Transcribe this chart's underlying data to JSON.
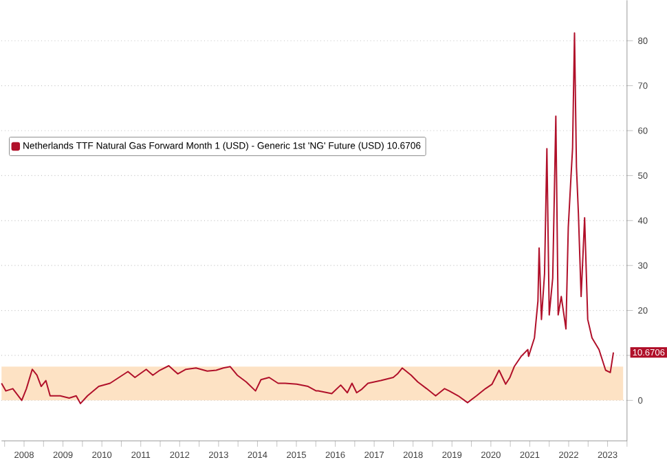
{
  "chart_data": {
    "type": "line",
    "series": [
      {
        "name": "Netherlands TTF Natural Gas Forward Month 1 (USD) - Generic 1st 'NG' Future (USD) 10.6706",
        "color": "#b0102a",
        "x": [
          2007.92,
          2008.03,
          2008.21,
          2008.44,
          2008.56,
          2008.71,
          2008.83,
          2008.94,
          2009.06,
          2009.17,
          2009.43,
          2009.66,
          2009.84,
          2009.95,
          2010.13,
          2010.42,
          2010.71,
          2010.94,
          2011.17,
          2011.35,
          2011.64,
          2011.81,
          2011.99,
          2012.22,
          2012.45,
          2012.66,
          2012.92,
          2013.21,
          2013.44,
          2013.62,
          2013.8,
          2013.98,
          2014.21,
          2014.45,
          2014.59,
          2014.8,
          2015.03,
          2015.21,
          2015.51,
          2015.8,
          2016.01,
          2016.06,
          2016.41,
          2016.64,
          2016.81,
          2016.93,
          2017.05,
          2017.17,
          2017.34,
          2017.67,
          2017.99,
          2018.1,
          2018.22,
          2018.45,
          2018.62,
          2018.85,
          2019.08,
          2019.31,
          2019.43,
          2019.66,
          2019.9,
          2020.13,
          2020.36,
          2020.53,
          2020.71,
          2020.88,
          2020.99,
          2021.1,
          2021.28,
          2021.45,
          2021.47,
          2021.62,
          2021.71,
          2021.74,
          2021.8,
          2021.88,
          2021.94,
          2022.0,
          2022.09,
          2022.17,
          2022.23,
          2022.31,
          2022.43,
          2022.49,
          2022.56,
          2022.6,
          2022.65,
          2022.7,
          2022.75,
          2022.82,
          2022.91,
          2022.99,
          2023.1,
          2023.28,
          2023.45,
          2023.57,
          2023.65
        ],
        "values": [
          3.8,
          2.1,
          2.6,
          0.0,
          2.6,
          6.9,
          5.6,
          3.1,
          4.4,
          1.0,
          1.0,
          0.5,
          1.0,
          -0.7,
          1.0,
          3.1,
          3.8,
          5.1,
          6.4,
          5.1,
          6.9,
          5.6,
          6.7,
          7.7,
          5.9,
          6.9,
          7.2,
          6.5,
          6.7,
          7.2,
          7.5,
          5.6,
          4.1,
          2.1,
          4.6,
          5.1,
          3.8,
          3.8,
          3.6,
          3.1,
          2.1,
          2.1,
          1.5,
          3.4,
          1.7,
          3.8,
          1.7,
          2.4,
          3.8,
          4.4,
          5.1,
          5.9,
          7.2,
          5.6,
          4.1,
          2.6,
          1.0,
          2.6,
          2.1,
          1.0,
          -0.5,
          1.0,
          2.6,
          3.6,
          6.7,
          3.6,
          5.1,
          7.5,
          9.8,
          11.3,
          9.8,
          13.9,
          22.1,
          33.9,
          18.0,
          28.2,
          56.0,
          19.0,
          27.2,
          63.2,
          19.0,
          23.1,
          15.9,
          38.5,
          49.8,
          56.0,
          81.7,
          51.9,
          41.6,
          23.1,
          40.6,
          18.0,
          13.9,
          11.3,
          6.7,
          6.2,
          10.67
        ]
      }
    ],
    "xlim": [
      2007.92,
      2024.0
    ],
    "xticks": [
      {
        "value": 2008,
        "label": null
      },
      {
        "value": 2008.5,
        "label": "2008"
      },
      {
        "value": 2009,
        "label": null
      },
      {
        "value": 2009.5,
        "label": "2009"
      },
      {
        "value": 2010,
        "label": null
      },
      {
        "value": 2010.5,
        "label": "2010"
      },
      {
        "value": 2011,
        "label": null
      },
      {
        "value": 2011.5,
        "label": "2011"
      },
      {
        "value": 2012,
        "label": null
      },
      {
        "value": 2012.5,
        "label": "2012"
      },
      {
        "value": 2013,
        "label": null
      },
      {
        "value": 2013.5,
        "label": "2013"
      },
      {
        "value": 2014,
        "label": null
      },
      {
        "value": 2014.5,
        "label": "2014"
      },
      {
        "value": 2015,
        "label": null
      },
      {
        "value": 2015.5,
        "label": "2015"
      },
      {
        "value": 2016,
        "label": null
      },
      {
        "value": 2016.5,
        "label": "2016"
      },
      {
        "value": 2017,
        "label": null
      },
      {
        "value": 2017.5,
        "label": "2017"
      },
      {
        "value": 2018,
        "label": null
      },
      {
        "value": 2018.5,
        "label": "2018"
      },
      {
        "value": 2019,
        "label": null
      },
      {
        "value": 2019.5,
        "label": "2019"
      },
      {
        "value": 2020,
        "label": null
      },
      {
        "value": 2020.5,
        "label": "2020"
      },
      {
        "value": 2021,
        "label": null
      },
      {
        "value": 2021.5,
        "label": "2021"
      },
      {
        "value": 2022,
        "label": null
      },
      {
        "value": 2022.5,
        "label": "2022"
      },
      {
        "value": 2023,
        "label": null
      },
      {
        "value": 2023.5,
        "label": "2023"
      },
      {
        "value": 2024,
        "label": null
      }
    ],
    "ylim": [
      -9,
      89
    ],
    "yticks": [
      0,
      {
        "value": 10,
        "label": null
      },
      20,
      30,
      40,
      50,
      60,
      70,
      80
    ],
    "bands": [
      {
        "axis": "y",
        "from": 0,
        "to": 7.5,
        "color": "#fde2c4"
      }
    ],
    "annotations": [
      {
        "text": "10.6706",
        "x": 2023.65,
        "y": 10.6706
      }
    ],
    "grid": "y",
    "legend": "top left",
    "line_style": "solid",
    "marker": "none"
  }
}
